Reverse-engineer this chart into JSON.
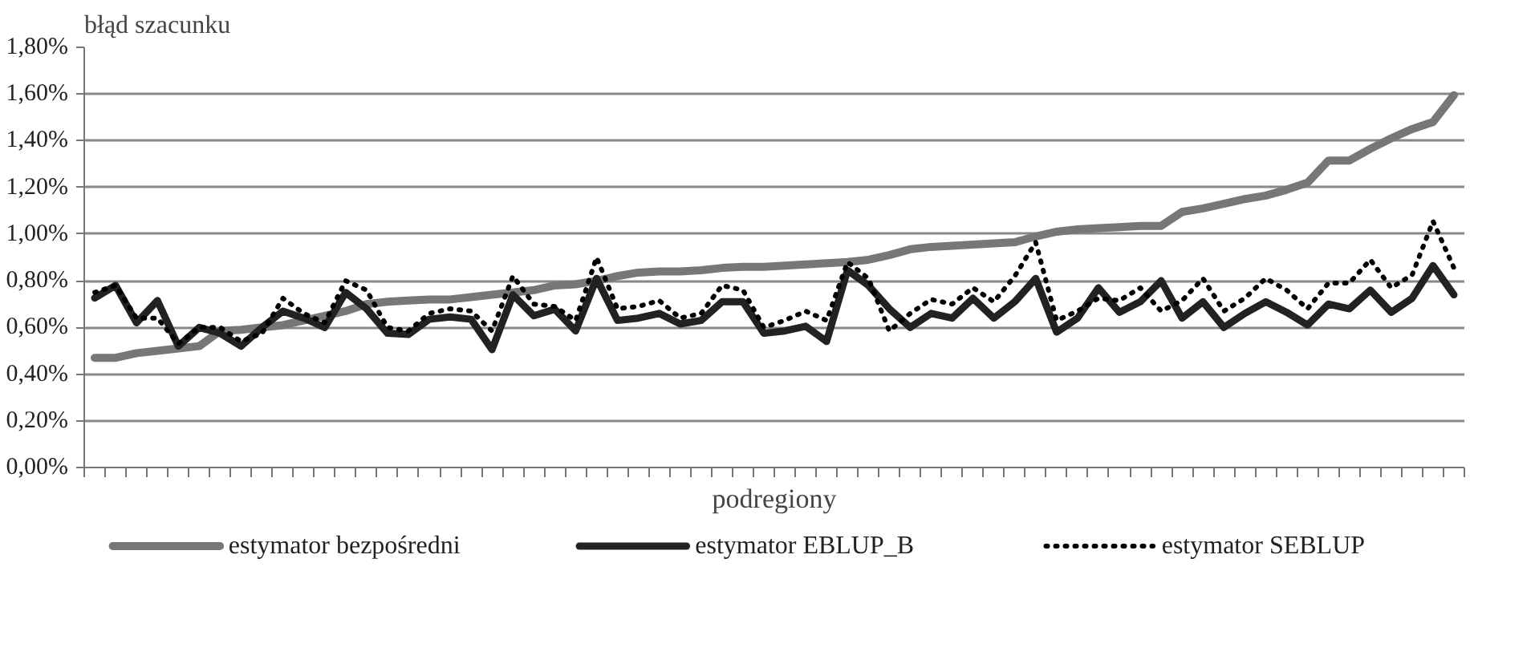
{
  "chart_data": {
    "type": "line",
    "ylabel": "błąd szacunku",
    "xlabel": "podregiony",
    "categories": [
      null,
      null,
      null,
      null,
      null,
      null,
      null,
      null,
      null,
      null,
      null,
      null,
      null,
      null,
      null,
      null,
      null,
      null,
      null,
      null,
      null,
      null,
      null,
      null,
      null,
      null,
      null,
      null,
      null,
      null,
      null,
      null,
      null,
      null,
      null,
      null,
      null,
      null,
      null,
      null,
      null,
      null,
      null,
      null,
      null,
      null,
      null,
      null,
      null,
      null,
      null,
      null,
      null,
      null,
      null,
      null,
      null,
      null,
      null,
      null,
      null,
      null,
      null,
      null,
      null,
      null
    ],
    "ylim": [
      0,
      1.8
    ],
    "yticks": [
      {
        "value": 0,
        "label": "0,00%"
      },
      {
        "value": 0.2,
        "label": "0,20%"
      },
      {
        "value": 0.4,
        "label": "0,40%"
      },
      {
        "value": 0.6,
        "label": "0,60%"
      },
      {
        "value": 0.8,
        "label": "0,80%"
      },
      {
        "value": 1.0,
        "label": "1,00%"
      },
      {
        "value": 1.2,
        "label": "1,20%"
      },
      {
        "value": 1.4,
        "label": "1,40%"
      },
      {
        "value": 1.6,
        "label": "1,60%"
      },
      {
        "value": 1.8,
        "label": "1,80%"
      }
    ],
    "grid": "y",
    "legend": "bottom",
    "marker": "none",
    "series": [
      {
        "name": "estymator bezpośredni",
        "color": "#777777",
        "line_style": "solid",
        "values": [
          0.47,
          0.47,
          0.49,
          0.5,
          0.51,
          0.52,
          0.585,
          0.59,
          0.6,
          0.61,
          0.63,
          0.65,
          0.67,
          0.7,
          0.71,
          0.715,
          0.72,
          0.72,
          0.73,
          0.74,
          0.75,
          0.76,
          0.78,
          0.785,
          0.8,
          0.82,
          0.835,
          0.84,
          0.84,
          0.845,
          0.855,
          0.86,
          0.86,
          0.865,
          0.87,
          0.875,
          0.88,
          0.89,
          0.91,
          0.935,
          0.945,
          0.95,
          0.955,
          0.96,
          0.965,
          0.99,
          1.01,
          1.02,
          1.025,
          1.03,
          1.035,
          1.035,
          1.095,
          1.11,
          1.13,
          1.15,
          1.165,
          1.19,
          1.22,
          1.315,
          1.315,
          1.365,
          1.41,
          1.45,
          1.48,
          1.595
        ]
      },
      {
        "name": "estymator EBLUP_B",
        "color": "#222222",
        "line_style": "solid",
        "values": [
          0.726,
          0.78,
          0.62,
          0.715,
          0.52,
          0.6,
          0.575,
          0.52,
          0.6,
          0.67,
          0.64,
          0.6,
          0.75,
          0.68,
          0.575,
          0.57,
          0.635,
          0.645,
          0.635,
          0.505,
          0.74,
          0.65,
          0.678,
          0.585,
          0.81,
          0.63,
          0.64,
          0.66,
          0.615,
          0.63,
          0.71,
          0.71,
          0.575,
          0.585,
          0.605,
          0.54,
          0.845,
          0.78,
          0.68,
          0.6,
          0.66,
          0.64,
          0.725,
          0.64,
          0.71,
          0.81,
          0.58,
          0.64,
          0.77,
          0.665,
          0.71,
          0.8,
          0.64,
          0.71,
          0.6,
          0.66,
          0.71,
          0.665,
          0.61,
          0.7,
          0.68,
          0.76,
          0.665,
          0.725,
          0.865,
          0.74
        ]
      },
      {
        "name": "estymator SEBLUP",
        "color": "#000000",
        "line_style": "dotted",
        "values": [
          0.75,
          0.78,
          0.64,
          0.64,
          0.53,
          0.6,
          0.6,
          0.54,
          0.575,
          0.725,
          0.66,
          0.62,
          0.8,
          0.76,
          0.6,
          0.585,
          0.66,
          0.68,
          0.67,
          0.585,
          0.82,
          0.7,
          0.69,
          0.63,
          0.9,
          0.68,
          0.69,
          0.715,
          0.64,
          0.66,
          0.78,
          0.76,
          0.6,
          0.63,
          0.67,
          0.63,
          0.88,
          0.81,
          0.585,
          0.66,
          0.72,
          0.7,
          0.77,
          0.71,
          0.82,
          0.965,
          0.63,
          0.67,
          0.725,
          0.715,
          0.77,
          0.67,
          0.715,
          0.81,
          0.67,
          0.725,
          0.81,
          0.76,
          0.68,
          0.79,
          0.79,
          0.89,
          0.77,
          0.825,
          1.055,
          0.855
        ]
      }
    ]
  }
}
